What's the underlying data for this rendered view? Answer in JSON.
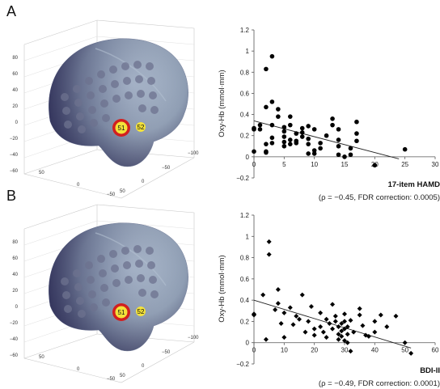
{
  "panels": [
    {
      "letter": "A",
      "brain": {
        "z_ticks": [
          "80",
          "60",
          "40",
          "20",
          "0",
          "−20",
          "−40",
          "−60",
          "−80"
        ],
        "x_ticks": [
          "50",
          "0",
          "−50"
        ],
        "y_ticks": [
          "−100",
          "−50",
          "0",
          "50"
        ],
        "channels": [
          {
            "label": "51",
            "highlighted": true
          },
          {
            "label": "52",
            "highlighted": false
          }
        ]
      },
      "xlabel": "17-item HAMD",
      "stat_text": "(ρ = −0.45, FDR correction: 0.0005)"
    },
    {
      "letter": "B",
      "brain": {
        "z_ticks": [
          "80",
          "60",
          "40",
          "20",
          "0",
          "−20",
          "−40",
          "−60",
          "−80"
        ],
        "x_ticks": [
          "50",
          "0",
          "−50"
        ],
        "y_ticks": [
          "−100",
          "−50",
          "0",
          "50"
        ],
        "channels": [
          {
            "label": "51",
            "highlighted": true
          },
          {
            "label": "52",
            "highlighted": false
          }
        ]
      },
      "xlabel": "BDI-II",
      "stat_text": "(ρ = −0.49, FDR correction: 0.0001)"
    }
  ],
  "colors": {
    "brain": "#8f9db2",
    "highlight_ring": "#d21f1f",
    "channel_fill": "#f4e23a",
    "points": "#000000"
  },
  "chart_data": [
    {
      "type": "scatter",
      "title": "",
      "xlabel": "17-item HAMD",
      "ylabel": "Oxy-Hb (mmol·mm)",
      "xlim": [
        0,
        30
      ],
      "ylim": [
        -0.2,
        1.2
      ],
      "x_ticks": [
        0,
        5,
        10,
        15,
        20,
        25,
        30
      ],
      "y_ticks": [
        -0.2,
        0,
        0.2,
        0.4,
        0.6,
        0.8,
        1,
        1.2
      ],
      "marker": "circle",
      "trendline": [
        [
          0,
          0.34
        ],
        [
          24,
          -0.02
        ]
      ],
      "points": [
        [
          0,
          0.26
        ],
        [
          0,
          0.27
        ],
        [
          0,
          0.05
        ],
        [
          1,
          0.3
        ],
        [
          1,
          0.26
        ],
        [
          2,
          0.05
        ],
        [
          2,
          0.04
        ],
        [
          2,
          0.12
        ],
        [
          2,
          0.47
        ],
        [
          2,
          0.83
        ],
        [
          3,
          0.52
        ],
        [
          3,
          0.95
        ],
        [
          3,
          0.18
        ],
        [
          3,
          0.13
        ],
        [
          3,
          0.3
        ],
        [
          4,
          0.45
        ],
        [
          4,
          0.38
        ],
        [
          5,
          0.28
        ],
        [
          5,
          0.24
        ],
        [
          5,
          0.19
        ],
        [
          5,
          0.14
        ],
        [
          5,
          0.1
        ],
        [
          6,
          0.16
        ],
        [
          6,
          0.3
        ],
        [
          6,
          0.38
        ],
        [
          6,
          0.12
        ],
        [
          7,
          0.22
        ],
        [
          7,
          0.15
        ],
        [
          7,
          0.13
        ],
        [
          8,
          0.23
        ],
        [
          8,
          0.19
        ],
        [
          8,
          0.27
        ],
        [
          9,
          0.03
        ],
        [
          9,
          0.12
        ],
        [
          9,
          0.17
        ],
        [
          9,
          0.29
        ],
        [
          10,
          0.26
        ],
        [
          10,
          0.06
        ],
        [
          10,
          0.03
        ],
        [
          11,
          0.08
        ],
        [
          11,
          0.13
        ],
        [
          12,
          0.2
        ],
        [
          13,
          0.36
        ],
        [
          13,
          0.3
        ],
        [
          14,
          0.26
        ],
        [
          14,
          0.16
        ],
        [
          14,
          0.1
        ],
        [
          14,
          0.02
        ],
        [
          15,
          0.0
        ],
        [
          16,
          0.08
        ],
        [
          16,
          0.02
        ],
        [
          17,
          0.33
        ],
        [
          17,
          0.22
        ],
        [
          17,
          0.15
        ],
        [
          20,
          -0.08
        ],
        [
          25,
          0.07
        ]
      ]
    },
    {
      "type": "scatter",
      "title": "",
      "xlabel": "BDI-II",
      "ylabel": "Oxy-Hb (mmol·mm)",
      "xlim": [
        0,
        60
      ],
      "ylim": [
        -0.2,
        1.2
      ],
      "x_ticks": [
        0,
        10,
        20,
        30,
        40,
        50,
        60
      ],
      "y_ticks": [
        -0.2,
        0,
        0.2,
        0.4,
        0.6,
        0.8,
        1,
        1.2
      ],
      "marker": "diamond",
      "trendline": [
        [
          0,
          0.4
        ],
        [
          52,
          -0.05
        ]
      ],
      "points": [
        [
          0,
          0.27
        ],
        [
          0,
          0.26
        ],
        [
          3,
          0.45
        ],
        [
          4,
          0.03
        ],
        [
          5,
          0.95
        ],
        [
          5,
          0.83
        ],
        [
          7,
          0.31
        ],
        [
          8,
          0.5
        ],
        [
          8,
          0.37
        ],
        [
          9,
          0.18
        ],
        [
          10,
          0.28
        ],
        [
          10,
          0.05
        ],
        [
          12,
          0.33
        ],
        [
          13,
          0.17
        ],
        [
          14,
          0.25
        ],
        [
          15,
          0.22
        ],
        [
          16,
          0.45
        ],
        [
          17,
          0.1
        ],
        [
          18,
          0.2
        ],
        [
          19,
          0.34
        ],
        [
          20,
          0.07
        ],
        [
          20,
          0.13
        ],
        [
          22,
          0.28
        ],
        [
          22,
          0.15
        ],
        [
          23,
          0.1
        ],
        [
          24,
          0.22
        ],
        [
          24,
          0.05
        ],
        [
          25,
          0.18
        ],
        [
          26,
          0.36
        ],
        [
          26,
          0.13
        ],
        [
          27,
          0.25
        ],
        [
          27,
          0.2
        ],
        [
          28,
          0.15
        ],
        [
          28,
          0.08
        ],
        [
          28,
          0.03
        ],
        [
          29,
          0.18
        ],
        [
          29,
          0.11
        ],
        [
          29,
          0.06
        ],
        [
          30,
          0.02
        ],
        [
          30,
          0.13
        ],
        [
          30,
          0.27
        ],
        [
          30,
          0.2
        ],
        [
          31,
          0.08
        ],
        [
          31,
          0.0
        ],
        [
          31,
          0.15
        ],
        [
          32,
          -0.08
        ],
        [
          32,
          0.21
        ],
        [
          33,
          0.1
        ],
        [
          35,
          0.32
        ],
        [
          35,
          0.26
        ],
        [
          36,
          0.16
        ],
        [
          37,
          0.07
        ],
        [
          38,
          0.06
        ],
        [
          40,
          0.2
        ],
        [
          40,
          0.1
        ],
        [
          42,
          0.26
        ],
        [
          44,
          0.15
        ],
        [
          47,
          0.25
        ],
        [
          50,
          0.0
        ],
        [
          52,
          -0.1
        ]
      ]
    }
  ]
}
